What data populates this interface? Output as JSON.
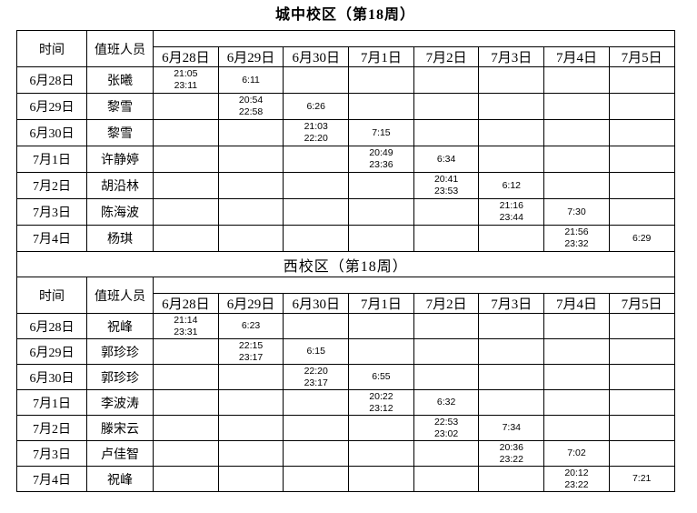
{
  "document": {
    "sections": [
      {
        "title": "城中校区（第18周）",
        "columns": {
          "time": "时间",
          "staff": "值班人员"
        },
        "dates": [
          "6月28日",
          "6月29日",
          "6月30日",
          "7月1日",
          "7月2日",
          "7月3日",
          "7月4日",
          "7月5日"
        ],
        "rows": [
          {
            "date": "6月28日",
            "name": "张曦",
            "times": [
              "21:05\n23:11",
              "6:11",
              "",
              "",
              "",
              "",
              "",
              ""
            ]
          },
          {
            "date": "6月29日",
            "name": "黎雪",
            "times": [
              "",
              "20:54\n22:58",
              "6:26",
              "",
              "",
              "",
              "",
              ""
            ]
          },
          {
            "date": "6月30日",
            "name": "黎雪",
            "times": [
              "",
              "",
              "21:03\n22:20",
              "7:15",
              "",
              "",
              "",
              ""
            ]
          },
          {
            "date": "7月1日",
            "name": "许静婷",
            "times": [
              "",
              "",
              "",
              "20:49\n23:36",
              "6:34",
              "",
              "",
              ""
            ]
          },
          {
            "date": "7月2日",
            "name": "胡沿林",
            "times": [
              "",
              "",
              "",
              "",
              "20:41\n23:53",
              "6:12",
              "",
              ""
            ]
          },
          {
            "date": "7月3日",
            "name": "陈海波",
            "times": [
              "",
              "",
              "",
              "",
              "",
              "21:16\n23:44",
              "7:30",
              ""
            ]
          },
          {
            "date": "7月4日",
            "name": "杨琪",
            "times": [
              "",
              "",
              "",
              "",
              "",
              "",
              "21:56\n23:32",
              "6:29"
            ]
          }
        ]
      },
      {
        "title": "西校区（第18周）",
        "columns": {
          "time": "时间",
          "staff": "值班人员"
        },
        "dates": [
          "6月28日",
          "6月29日",
          "6月30日",
          "7月1日",
          "7月2日",
          "7月3日",
          "7月4日",
          "7月5日"
        ],
        "rows": [
          {
            "date": "6月28日",
            "name": "祝峰",
            "times": [
              "21:14\n23:31",
              "6:23",
              "",
              "",
              "",
              "",
              "",
              ""
            ]
          },
          {
            "date": "6月29日",
            "name": "郭珍珍",
            "times": [
              "",
              "22:15\n23:17",
              "6:15",
              "",
              "",
              "",
              "",
              ""
            ]
          },
          {
            "date": "6月30日",
            "name": "郭珍珍",
            "times": [
              "",
              "",
              "22:20\n23:17",
              "6:55",
              "",
              "",
              "",
              ""
            ]
          },
          {
            "date": "7月1日",
            "name": "李波涛",
            "times": [
              "",
              "",
              "",
              "20:22\n23:12",
              "6:32",
              "",
              "",
              ""
            ]
          },
          {
            "date": "7月2日",
            "name": "滕宋云",
            "times": [
              "",
              "",
              "",
              "",
              "22:53\n23:02",
              "7:34",
              "",
              ""
            ]
          },
          {
            "date": "7月3日",
            "name": "卢佳智",
            "times": [
              "",
              "",
              "",
              "",
              "",
              "20:36\n23:22",
              "7:02",
              ""
            ]
          },
          {
            "date": "7月4日",
            "name": "祝峰",
            "times": [
              "",
              "",
              "",
              "",
              "",
              "",
              "20:12\n23:22",
              "7:21"
            ]
          }
        ]
      }
    ]
  }
}
